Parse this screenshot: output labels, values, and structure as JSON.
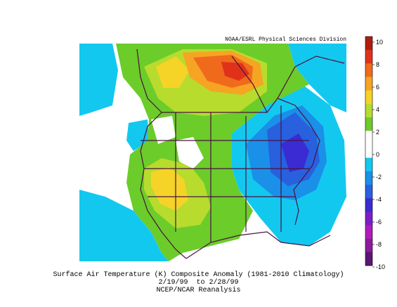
{
  "credit": "NOAA/ESRL Physical Sciences Division",
  "caption": {
    "line1": "Surface Air Temperature (K) Composite Anomaly (1981-2010 Climatology)",
    "line2": "2/19/99  to 2/28/99",
    "line3": "NCEP/NCAR Reanalysis"
  },
  "colorbar": {
    "levels": [
      "10",
      "8",
      "6",
      "4",
      "2",
      "0",
      "-2",
      "-4",
      "-6",
      "-8",
      "-10"
    ],
    "colors": [
      "#b01d0f",
      "#e0321a",
      "#f06a1c",
      "#f6a424",
      "#f5d327",
      "#b7dc2d",
      "#6ccc2a",
      "#ffffff",
      "#ffffff",
      "#13c8ef",
      "#1a90e8",
      "#2860de",
      "#3a2bd2",
      "#7b1ec8",
      "#b21bbb",
      "#8c1b9c",
      "#5a1673"
    ]
  }
}
